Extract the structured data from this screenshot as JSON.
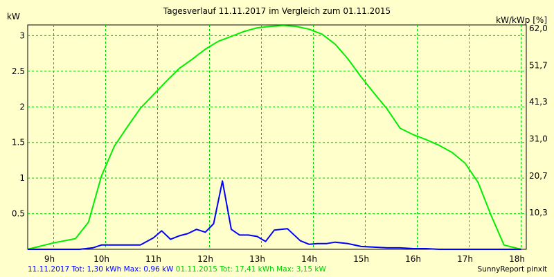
{
  "chart_data": {
    "type": "line",
    "title": "Tagesverlauf 11.11.2017 im Vergleich zum 01.11.2015",
    "ylabel_left": "kW",
    "ylabel_right": "kW/kWp [%]",
    "xlim": [
      8.5,
      18.1
    ],
    "ylim": [
      0,
      3.15
    ],
    "x_ticks": [
      9,
      10,
      11,
      12,
      13,
      14,
      15,
      16,
      17,
      18
    ],
    "x_tick_labels": [
      "9h",
      "10h",
      "11h",
      "12h",
      "13h",
      "14h",
      "15h",
      "16h",
      "17h",
      "18h"
    ],
    "y_ticks_left": [
      0.5,
      1,
      1.5,
      2,
      2.5,
      3
    ],
    "y_tick_labels_left": [
      "0.5",
      "1",
      "1.5",
      "2",
      "2.5",
      "3"
    ],
    "y_ticks_right_kw": [
      0.516,
      1.03,
      1.55,
      2.07,
      2.58,
      3.1
    ],
    "y_tick_labels_right": [
      "10,3",
      "20,7",
      "31,0",
      "41,3",
      "51,7",
      "62,0"
    ],
    "grid": true,
    "series": [
      {
        "name": "01.11.2015",
        "color": "#00ee00",
        "x": [
          8.5,
          9.0,
          9.42,
          9.67,
          9.92,
          10.17,
          10.42,
          10.67,
          10.92,
          11.17,
          11.42,
          11.67,
          11.92,
          12.17,
          12.42,
          12.67,
          12.92,
          13.17,
          13.42,
          13.67,
          13.92,
          14.17,
          14.42,
          14.67,
          14.92,
          15.17,
          15.42,
          15.67,
          15.92,
          16.17,
          16.42,
          16.67,
          16.92,
          17.17,
          17.42,
          17.67,
          18.0
        ],
        "values": [
          0.0,
          0.09,
          0.15,
          0.38,
          1.03,
          1.45,
          1.72,
          1.98,
          2.17,
          2.36,
          2.54,
          2.67,
          2.81,
          2.92,
          2.99,
          3.06,
          3.11,
          3.13,
          3.14,
          3.13,
          3.09,
          3.02,
          2.88,
          2.67,
          2.42,
          2.19,
          1.97,
          1.7,
          1.61,
          1.54,
          1.46,
          1.36,
          1.21,
          0.94,
          0.48,
          0.06,
          0.0
        ]
      },
      {
        "name": "11.11.2017",
        "color": "#0000ff",
        "x": [
          8.5,
          9.5,
          9.75,
          9.92,
          10.17,
          10.42,
          10.67,
          10.92,
          11.08,
          11.25,
          11.42,
          11.58,
          11.75,
          11.92,
          12.08,
          12.25,
          12.42,
          12.58,
          12.75,
          12.92,
          13.08,
          13.25,
          13.5,
          13.75,
          13.92,
          14.08,
          14.25,
          14.42,
          14.67,
          14.92,
          15.17,
          15.42,
          15.67,
          15.92,
          16.17,
          16.42,
          16.67,
          16.92,
          17.17,
          17.42,
          17.67,
          18.0
        ],
        "values": [
          0.0,
          0.0,
          0.02,
          0.06,
          0.06,
          0.06,
          0.06,
          0.16,
          0.26,
          0.14,
          0.19,
          0.22,
          0.28,
          0.24,
          0.36,
          0.96,
          0.28,
          0.2,
          0.2,
          0.18,
          0.11,
          0.27,
          0.29,
          0.12,
          0.07,
          0.08,
          0.08,
          0.1,
          0.08,
          0.04,
          0.03,
          0.02,
          0.02,
          0.01,
          0.01,
          0.0,
          0.0,
          0.0,
          0.0,
          0.0,
          0.0,
          0.0
        ]
      }
    ]
  },
  "footer": {
    "blue_text": "11.11.2017 Tot: 1,30 kWh Max: 0,96 kW",
    "green_text": "01.11.2015 Tot: 17,41 kWh Max: 3,15 kW",
    "brand": "SunnyReport pinxit"
  }
}
